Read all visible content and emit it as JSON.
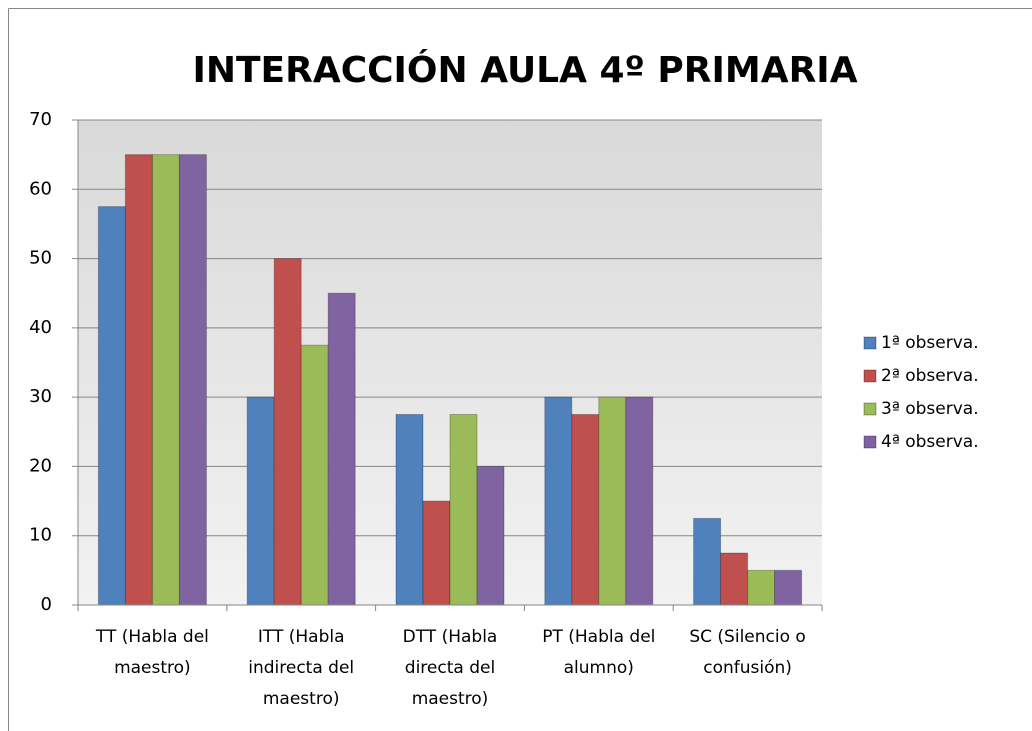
{
  "chart_data": {
    "type": "bar",
    "title": "INTERACCIÓN AULA 4º PRIMARIA",
    "categories": [
      "TT (Habla del maestro)",
      "ITT (Habla indirecta del maestro)",
      "DTT (Habla directa del maestro)",
      "PT (Habla del alumno)",
      "SC (Silencio o confusión)"
    ],
    "series": [
      {
        "name": "1ª observa.",
        "color": "#4f81bd",
        "values": [
          57.5,
          30,
          27.5,
          30,
          12.5
        ]
      },
      {
        "name": "2ª observa.",
        "color": "#c0504d",
        "values": [
          65,
          50,
          15,
          27.5,
          7.5
        ]
      },
      {
        "name": "3ª observa.",
        "color": "#9bbb59",
        "values": [
          65,
          37.5,
          27.5,
          30,
          5
        ]
      },
      {
        "name": "4ª observa.",
        "color": "#8064a2",
        "values": [
          65,
          45,
          20,
          30,
          5
        ]
      }
    ],
    "ylim": [
      0,
      70
    ],
    "yticks": [
      0,
      10,
      20,
      30,
      40,
      50,
      60,
      70
    ],
    "grid": true,
    "legend": "right"
  }
}
